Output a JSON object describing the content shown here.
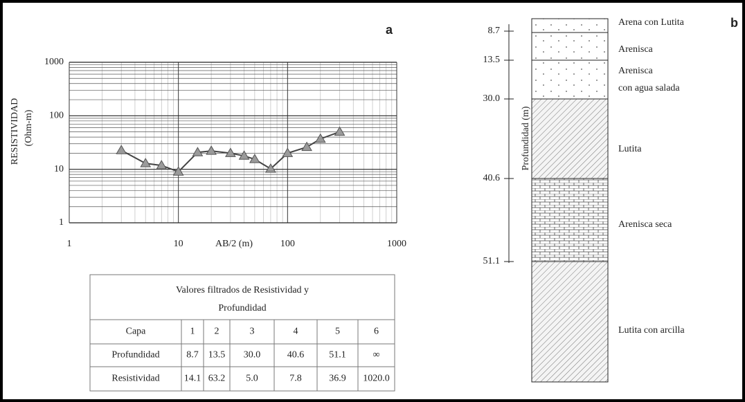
{
  "chart_data": {
    "type": "line",
    "panel_label": "a",
    "y_label": "RESISTIVIDAD",
    "y_unit": "(Ohm-m)",
    "x_label": "AB/2 (m)",
    "x": [
      3,
      5,
      7,
      10,
      15,
      20,
      30,
      40,
      50,
      70,
      100,
      150,
      200,
      300
    ],
    "y": [
      22.6,
      12.9,
      11.8,
      9.0,
      20.7,
      22,
      20,
      17.8,
      15.4,
      10.2,
      20,
      26,
      37,
      50
    ],
    "color": "#444444",
    "marker_color": "#9a9a9a",
    "xlim": [
      1,
      1000
    ],
    "ylim": [
      1,
      1000
    ],
    "xticks": [
      1,
      10,
      100,
      1000
    ],
    "yticks": [
      1,
      10,
      100,
      1000
    ],
    "xlog": true,
    "ylog": true,
    "grid": true
  },
  "table": {
    "title": "Valores filtrados de Resistividad y Profundidad",
    "header": [
      "Capa",
      "1",
      "2",
      "3",
      "4",
      "5",
      "6"
    ],
    "rows": [
      [
        "Profundidad",
        "8.7",
        "13.5",
        "30.0",
        "40.6",
        "51.1",
        "∞"
      ],
      [
        "Resistividad",
        "14.1",
        "63.2",
        "5.0",
        "7.8",
        "36.9",
        "1020.0"
      ]
    ]
  },
  "column": {
    "panel_label": "b",
    "axis_label": "Profundidad (m)",
    "depths": [
      "8.7",
      "13.5",
      "30.0",
      "40.6",
      "51.1"
    ],
    "layers": [
      {
        "lines": [
          "Arena con Lutita"
        ]
      },
      {
        "lines": [
          "Arenisca"
        ]
      },
      {
        "lines": [
          "Arenisca",
          "con agua salada"
        ]
      },
      {
        "lines": [
          "Lutita"
        ]
      },
      {
        "lines": [
          "Arenisca seca"
        ]
      },
      {
        "lines": [
          "Lutita con arcilla"
        ]
      }
    ]
  }
}
